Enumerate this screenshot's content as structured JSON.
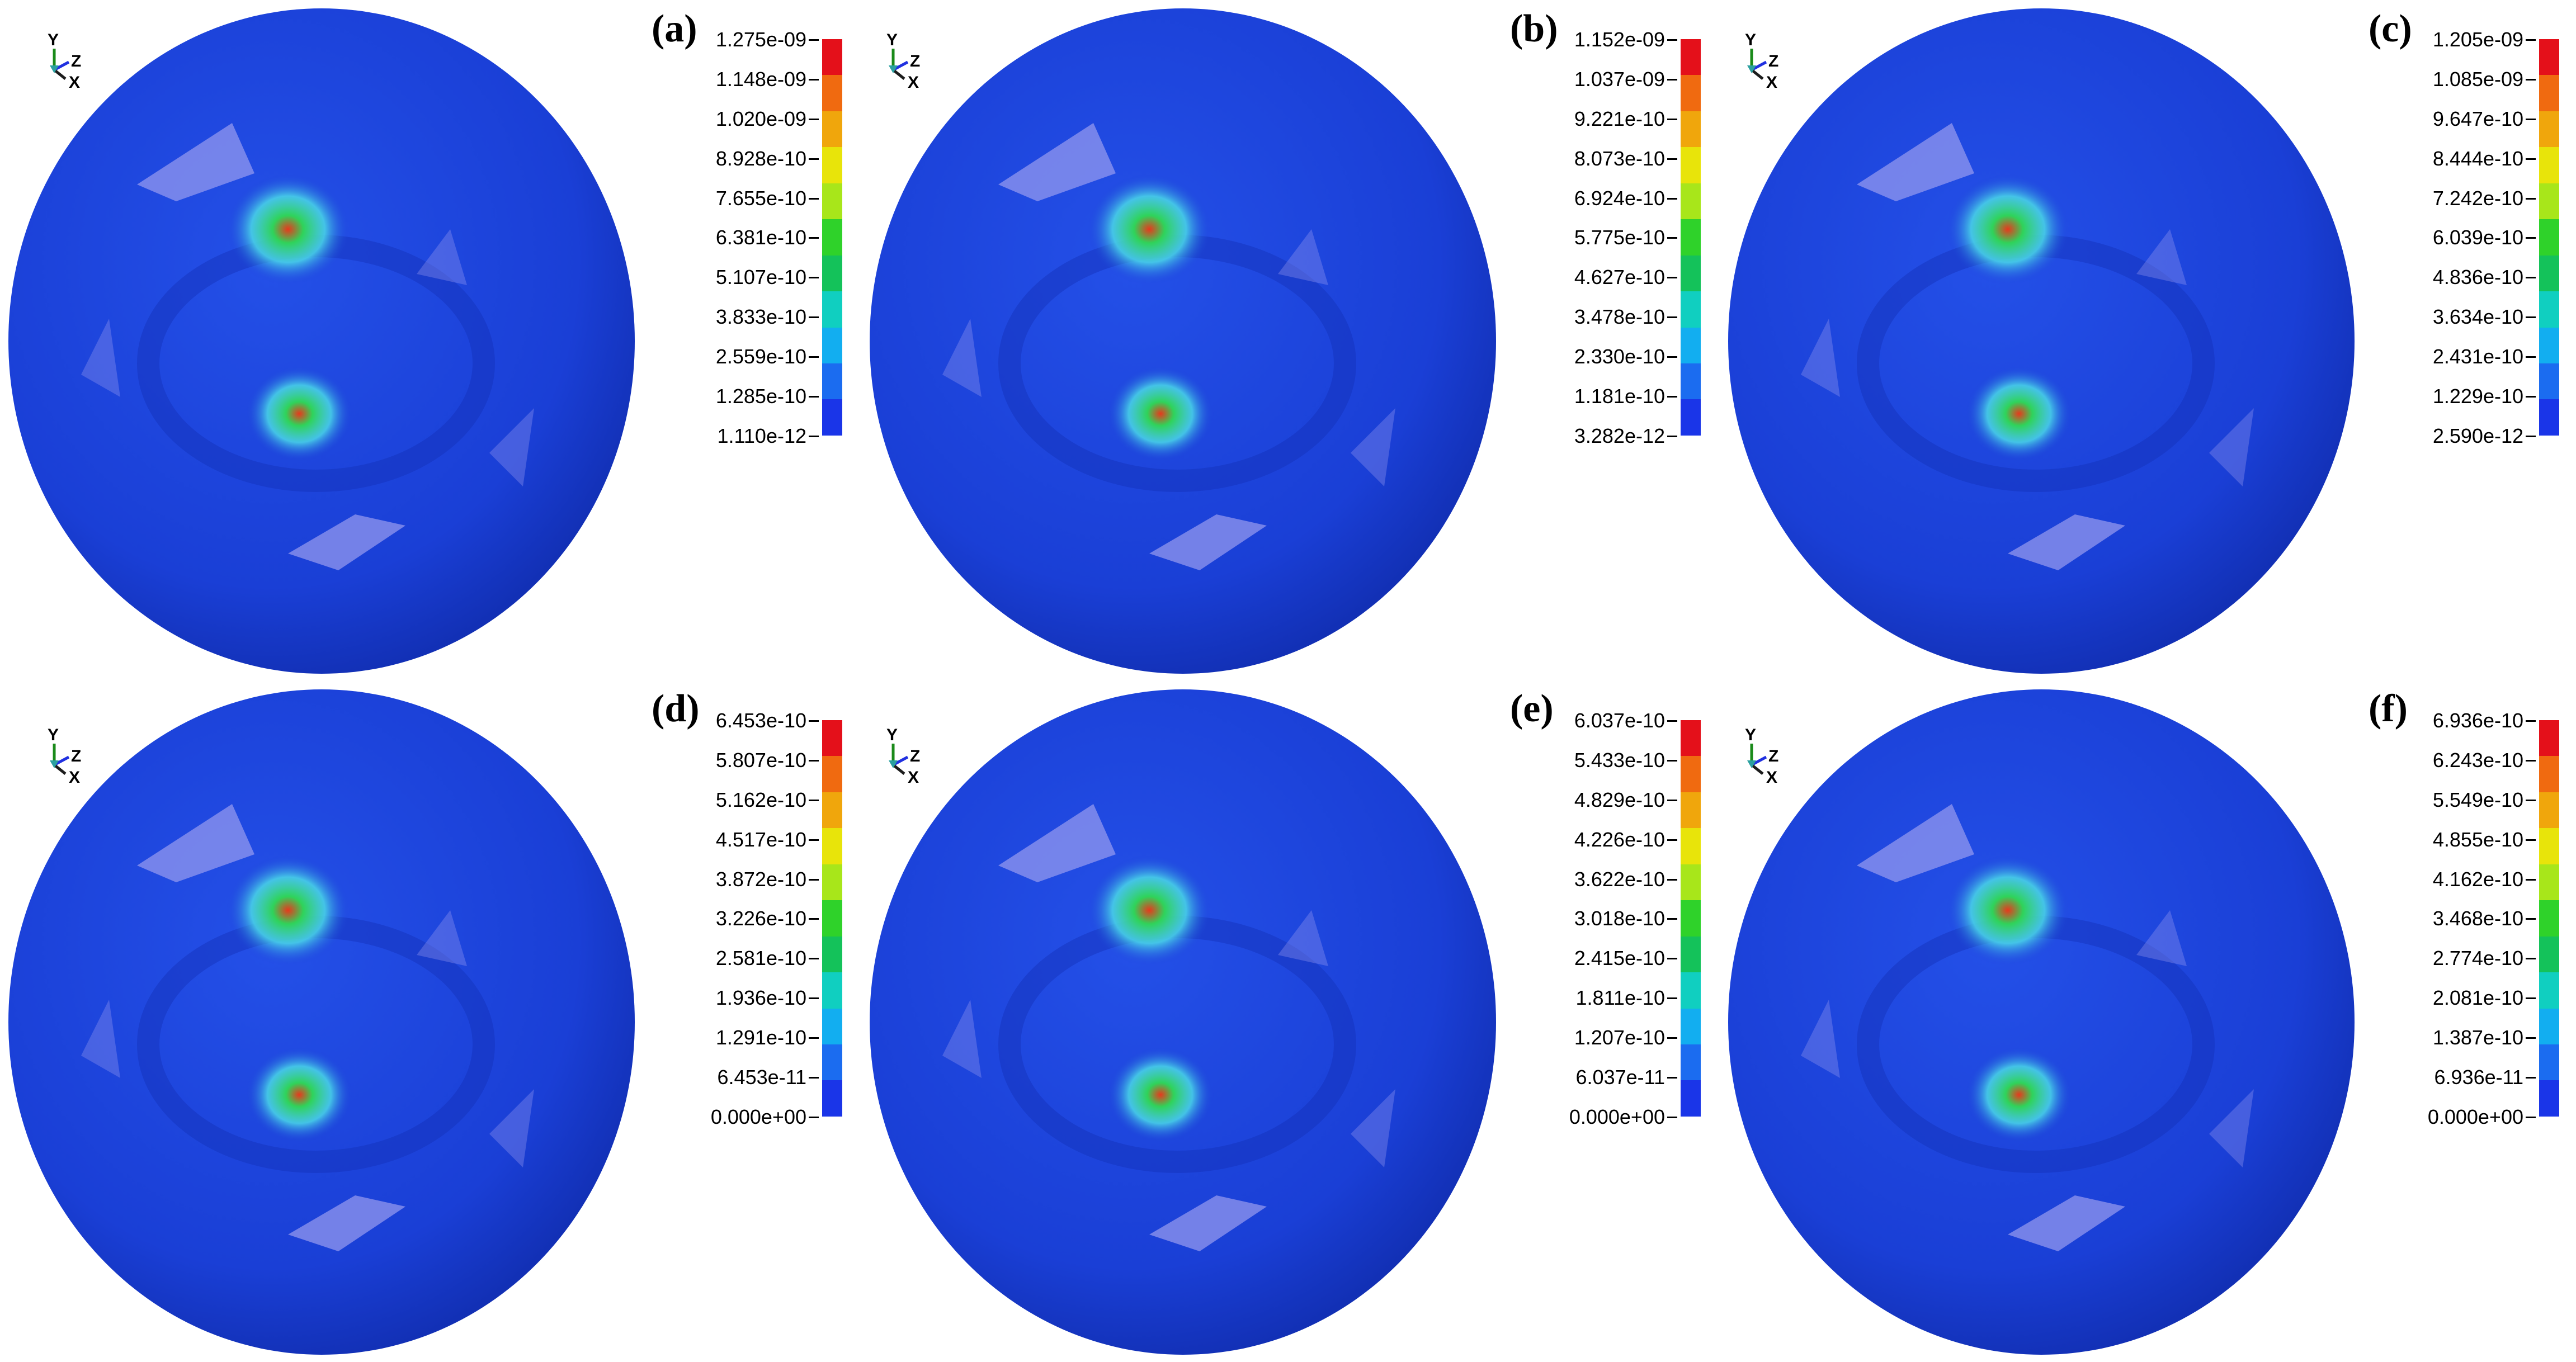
{
  "colors": {
    "sphere_base": "#1a3fd6",
    "sphere_shadow": "#0f2aa8",
    "highlight_cyan": "#4ad8e8",
    "highlight_green": "#2fd35a",
    "highlight_red": "#e8381c",
    "facet_lavender": "#9a9cf0",
    "background": "#ffffff"
  },
  "colorbar_palette": [
    "#e4101a",
    "#f06a10",
    "#f0a60c",
    "#e8e40a",
    "#a8e61a",
    "#2fd22a",
    "#14c25a",
    "#10cfc0",
    "#12aef0",
    "#1b6cf0",
    "#1a35e8"
  ],
  "axis_triad": {
    "y": "Y",
    "z": "Z",
    "x": "X"
  },
  "panels": [
    {
      "label": "(a)",
      "ticks": [
        "1.275e-09",
        "1.148e-09",
        "1.020e-09",
        "8.928e-10",
        "7.655e-10",
        "6.381e-10",
        "5.107e-10",
        "3.833e-10",
        "2.559e-10",
        "1.285e-10",
        "1.110e-12"
      ]
    },
    {
      "label": "(b)",
      "ticks": [
        "1.152e-09",
        "1.037e-09",
        "9.221e-10",
        "8.073e-10",
        "6.924e-10",
        "5.775e-10",
        "4.627e-10",
        "3.478e-10",
        "2.330e-10",
        "1.181e-10",
        "3.282e-12"
      ]
    },
    {
      "label": "(c)",
      "ticks": [
        "1.205e-09",
        "1.085e-09",
        "9.647e-10",
        "8.444e-10",
        "7.242e-10",
        "6.039e-10",
        "4.836e-10",
        "3.634e-10",
        "2.431e-10",
        "1.229e-10",
        "2.590e-12"
      ]
    },
    {
      "label": "(d)",
      "ticks": [
        "6.453e-10",
        "5.807e-10",
        "5.162e-10",
        "4.517e-10",
        "3.872e-10",
        "3.226e-10",
        "2.581e-10",
        "1.936e-10",
        "1.291e-10",
        "6.453e-11",
        "0.000e+00"
      ]
    },
    {
      "label": "(e)",
      "ticks": [
        "6.037e-10",
        "5.433e-10",
        "4.829e-10",
        "4.226e-10",
        "3.622e-10",
        "3.018e-10",
        "2.415e-10",
        "1.811e-10",
        "1.207e-10",
        "6.037e-11",
        "0.000e+00"
      ]
    },
    {
      "label": "(f)",
      "ticks": [
        "6.936e-10",
        "6.243e-10",
        "5.549e-10",
        "4.855e-10",
        "4.162e-10",
        "3.468e-10",
        "2.774e-10",
        "2.081e-10",
        "1.387e-10",
        "6.936e-11",
        "0.000e+00"
      ]
    }
  ]
}
